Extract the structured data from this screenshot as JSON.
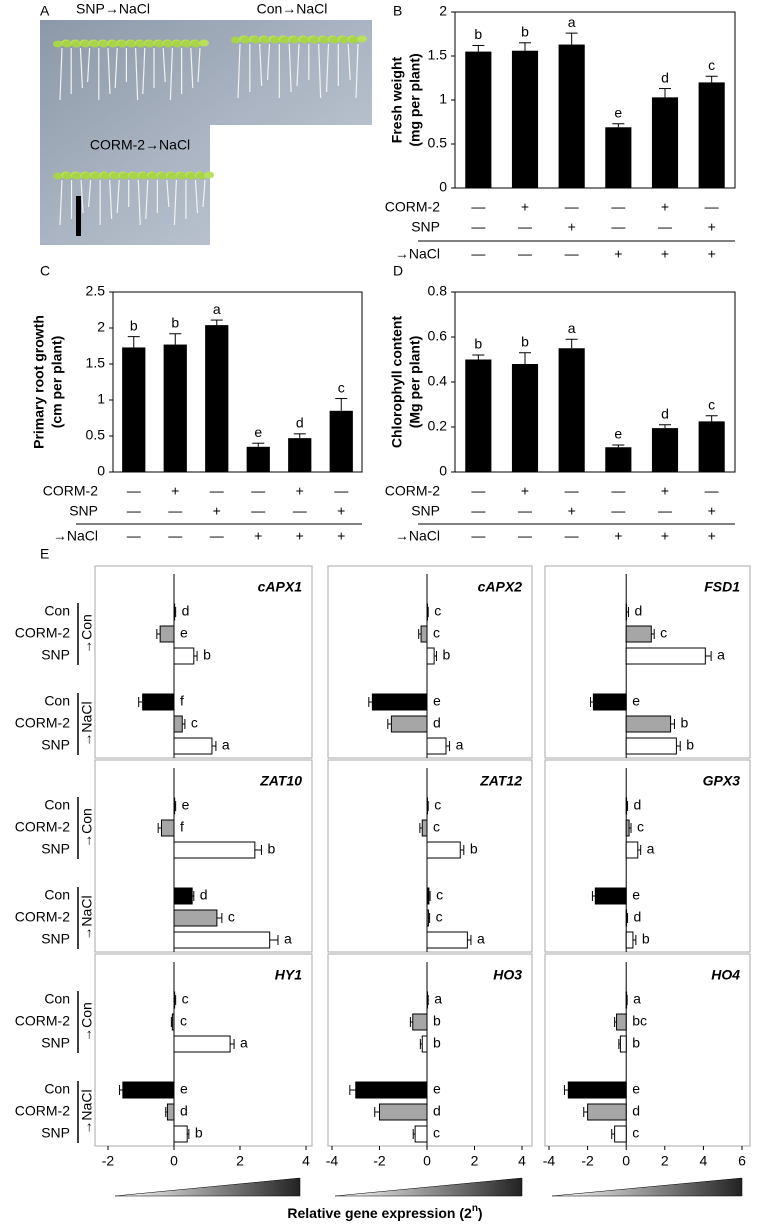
{
  "panels": [
    "A",
    "B",
    "C",
    "D",
    "E"
  ],
  "photo": {
    "labels": [
      "SNP→NaCl",
      "Con→NaCl",
      "CORM-2→NaCl"
    ]
  },
  "chart_data": [
    {
      "type": "bar",
      "ylabel": [
        "Fresh weight",
        "(mg per plant)"
      ],
      "values": [
        1.55,
        1.56,
        1.63,
        0.69,
        1.03,
        1.2
      ],
      "errors": [
        0.07,
        0.09,
        0.13,
        0.04,
        0.1,
        0.07
      ],
      "letters": [
        "b",
        "b",
        "a",
        "e",
        "d",
        "c"
      ],
      "color": "#000000",
      "ylim": [
        0,
        2
      ],
      "yticks": [
        0,
        0.5,
        1,
        1.5,
        2
      ],
      "treatments": {
        "labels": [
          "CORM-2",
          "SNP",
          "→NaCl"
        ],
        "signs": [
          [
            "—",
            "+",
            "—",
            "—",
            "+",
            "—"
          ],
          [
            "—",
            "—",
            "+",
            "—",
            "—",
            "+"
          ],
          [
            "—",
            "—",
            "—",
            "+",
            "+",
            "+"
          ]
        ]
      }
    },
    {
      "type": "bar",
      "ylabel": [
        "Primary root growth",
        "(cm per plant)"
      ],
      "values": [
        1.73,
        1.77,
        2.04,
        0.35,
        0.47,
        0.85
      ],
      "errors": [
        0.15,
        0.15,
        0.07,
        0.05,
        0.06,
        0.17
      ],
      "letters": [
        "b",
        "b",
        "a",
        "e",
        "d",
        "c"
      ],
      "color": "#000000",
      "ylim": [
        0,
        2.5
      ],
      "yticks": [
        0,
        0.5,
        1,
        1.5,
        2,
        2.5
      ],
      "treatments": {
        "labels": [
          "CORM-2",
          "SNP",
          "→NaCl"
        ],
        "signs": [
          [
            "—",
            "+",
            "—",
            "—",
            "+",
            "—"
          ],
          [
            "—",
            "—",
            "+",
            "—",
            "—",
            "+"
          ],
          [
            "—",
            "—",
            "—",
            "+",
            "+",
            "+"
          ]
        ]
      }
    },
    {
      "type": "bar",
      "ylabel": [
        "Chlorophyll content",
        "(Mg per plant)"
      ],
      "values": [
        0.5,
        0.48,
        0.55,
        0.11,
        0.195,
        0.225
      ],
      "errors": [
        0.02,
        0.05,
        0.04,
        0.01,
        0.015,
        0.025
      ],
      "letters": [
        "b",
        "b",
        "a",
        "e",
        "d",
        "c"
      ],
      "color": "#000000",
      "ylim": [
        0,
        0.8
      ],
      "yticks": [
        0,
        0.2,
        0.4,
        0.6,
        0.8
      ],
      "treatments": {
        "labels": [
          "CORM-2",
          "SNP",
          "→NaCl"
        ],
        "signs": [
          [
            "—",
            "+",
            "—",
            "—",
            "+",
            "—"
          ],
          [
            "—",
            "—",
            "+",
            "—",
            "—",
            "+"
          ],
          [
            "—",
            "—",
            "—",
            "+",
            "+",
            "+"
          ]
        ]
      }
    },
    {
      "type": "hbar",
      "title": "cAPX1",
      "categories": [
        "Con",
        "CORM-2",
        "SNP",
        "Con",
        "CORM-2",
        "SNP"
      ],
      "groups": [
        "→Con",
        "→NaCl"
      ],
      "values": [
        0.02,
        -0.42,
        0.6,
        -0.95,
        0.25,
        1.15
      ],
      "errors": [
        0.03,
        0.1,
        0.1,
        0.12,
        0.08,
        0.12
      ],
      "letters": [
        "d",
        "e",
        "b",
        "f",
        "c",
        "a"
      ],
      "colors": [
        "#000000",
        "#a6a6a6",
        "#ffffff",
        "#000000",
        "#a6a6a6",
        "#ffffff"
      ],
      "xlim": [
        -2,
        4
      ]
    },
    {
      "type": "hbar",
      "title": "cAPX2",
      "values": [
        0.02,
        -0.25,
        0.3,
        -2.3,
        -1.5,
        0.8
      ],
      "errors": [
        0.03,
        0.1,
        0.1,
        0.15,
        0.15,
        0.15
      ],
      "letters": [
        "c",
        "c",
        "b",
        "e",
        "d",
        "a"
      ],
      "colors": [
        "#000000",
        "#a6a6a6",
        "#ffffff",
        "#000000",
        "#a6a6a6",
        "#ffffff"
      ],
      "xlim": [
        -4,
        4
      ]
    },
    {
      "type": "hbar",
      "title": "FSD1",
      "values": [
        0.02,
        1.3,
        4.1,
        -1.7,
        2.3,
        2.6
      ],
      "errors": [
        0.1,
        0.15,
        0.3,
        0.15,
        0.2,
        0.2
      ],
      "letters": [
        "d",
        "c",
        "a",
        "e",
        "b",
        "b"
      ],
      "colors": [
        "#000000",
        "#a6a6a6",
        "#ffffff",
        "#000000",
        "#a6a6a6",
        "#ffffff"
      ],
      "xlim": [
        -4,
        6
      ]
    },
    {
      "type": "hbar",
      "title": "ZAT10",
      "categories": [
        "Con",
        "CORM-2",
        "SNP",
        "Con",
        "CORM-2",
        "SNP"
      ],
      "groups": [
        "→Con",
        "→NaCl"
      ],
      "values": [
        0.02,
        -0.38,
        2.45,
        0.55,
        1.3,
        2.9
      ],
      "errors": [
        0.03,
        0.1,
        0.2,
        0.05,
        0.15,
        0.25
      ],
      "letters": [
        "e",
        "f",
        "b",
        "d",
        "c",
        "a"
      ],
      "colors": [
        "#000000",
        "#a6a6a6",
        "#ffffff",
        "#000000",
        "#a6a6a6",
        "#ffffff"
      ],
      "xlim": [
        -2,
        4
      ]
    },
    {
      "type": "hbar",
      "title": "ZAT12",
      "values": [
        0.02,
        -0.2,
        1.4,
        0.08,
        0.06,
        1.7
      ],
      "errors": [
        0.03,
        0.1,
        0.15,
        0.05,
        0.05,
        0.15
      ],
      "letters": [
        "c",
        "c",
        "b",
        "c",
        "c",
        "a"
      ],
      "colors": [
        "#000000",
        "#a6a6a6",
        "#ffffff",
        "#000000",
        "#a6a6a6",
        "#ffffff"
      ],
      "xlim": [
        -4,
        4
      ]
    },
    {
      "type": "hbar",
      "title": "GPX3",
      "values": [
        0.02,
        0.15,
        0.6,
        -1.6,
        0.02,
        0.35
      ],
      "errors": [
        0.05,
        0.1,
        0.15,
        0.15,
        0.05,
        0.15
      ],
      "letters": [
        "d",
        "c",
        "a",
        "e",
        "d",
        "b"
      ],
      "colors": [
        "#000000",
        "#a6a6a6",
        "#ffffff",
        "#000000",
        "#a6a6a6",
        "#ffffff"
      ],
      "xlim": [
        -4,
        6
      ]
    },
    {
      "type": "hbar",
      "title": "HY1",
      "categories": [
        "Con",
        "CORM-2",
        "SNP",
        "Con",
        "CORM-2",
        "SNP"
      ],
      "groups": [
        "→Con",
        "→NaCl"
      ],
      "values": [
        0.02,
        -0.05,
        1.7,
        -1.55,
        -0.2,
        0.4
      ],
      "errors": [
        0.03,
        0.03,
        0.12,
        0.1,
        0.05,
        0.05
      ],
      "letters": [
        "c",
        "c",
        "a",
        "e",
        "d",
        "b"
      ],
      "colors": [
        "#000000",
        "#a6a6a6",
        "#ffffff",
        "#000000",
        "#a6a6a6",
        "#ffffff"
      ],
      "xlim": [
        -2,
        4
      ],
      "xticks": [
        -2,
        0,
        2,
        4
      ]
    },
    {
      "type": "hbar",
      "title": "HO3",
      "values": [
        0.02,
        -0.6,
        -0.2,
        -3.0,
        -2.0,
        -0.5
      ],
      "errors": [
        0.03,
        0.1,
        0.08,
        0.25,
        0.2,
        0.08
      ],
      "letters": [
        "a",
        "b",
        "b",
        "e",
        "d",
        "c"
      ],
      "colors": [
        "#000000",
        "#a6a6a6",
        "#ffffff",
        "#000000",
        "#a6a6a6",
        "#ffffff"
      ],
      "xlim": [
        -4,
        4
      ],
      "xticks": [
        -4,
        -2,
        0,
        2,
        4
      ]
    },
    {
      "type": "hbar",
      "title": "HO4",
      "values": [
        0.02,
        -0.5,
        -0.3,
        -3.0,
        -2.0,
        -0.6
      ],
      "errors": [
        0.03,
        0.1,
        0.08,
        0.2,
        0.2,
        0.15
      ],
      "letters": [
        "a",
        "bc",
        "b",
        "e",
        "d",
        "c"
      ],
      "colors": [
        "#000000",
        "#a6a6a6",
        "#ffffff",
        "#000000",
        "#a6a6a6",
        "#ffffff"
      ],
      "xlim": [
        -4,
        6
      ],
      "xticks": [
        -4,
        -2,
        0,
        2,
        4,
        6
      ]
    }
  ],
  "panel_e": {
    "xlabel": [
      "Relative gene expression (2",
      "n",
      ")"
    ]
  }
}
